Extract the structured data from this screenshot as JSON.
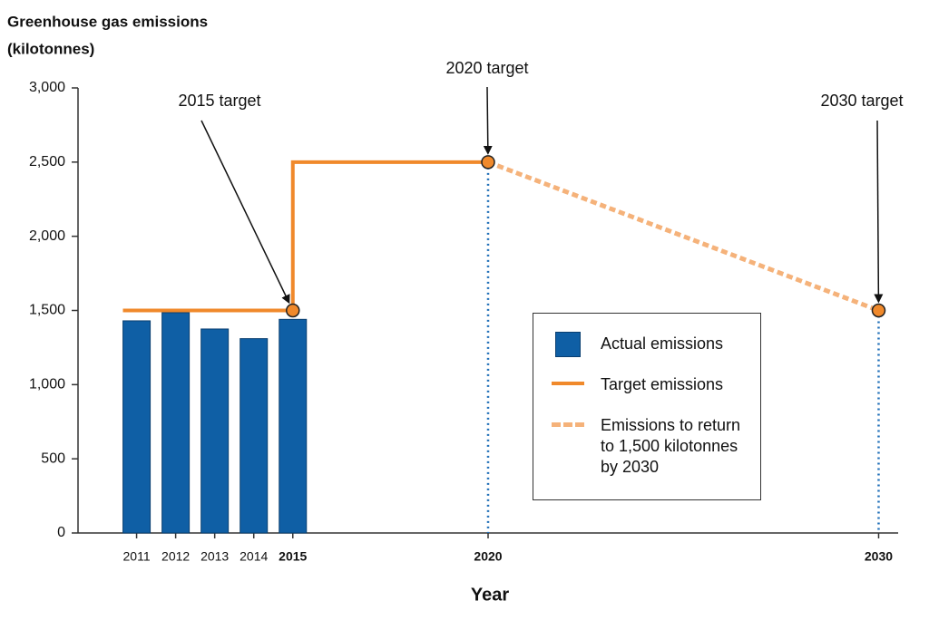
{
  "chart_data": {
    "type": "combo",
    "y_label": [
      "Greenhouse gas emissions",
      "(kilotonnes)"
    ],
    "x_label": "Year",
    "xlim": [
      2009.5,
      2030.5
    ],
    "xticks": [
      2011,
      2012,
      2013,
      2014,
      2015,
      2020,
      2030
    ],
    "ylim": [
      0,
      3000
    ],
    "yticks": [
      0,
      500,
      {
        "value": 1000,
        "label": "1,000"
      },
      {
        "value": 1500,
        "label": "1,500"
      },
      {
        "value": 2000,
        "label": "2,000"
      },
      {
        "value": 2500,
        "label": "2,500"
      },
      {
        "value": 3000,
        "label": "3,000"
      }
    ],
    "series": [
      {
        "name": "Actual emissions",
        "type": "bar",
        "color": "#0f5fa5",
        "x": [
          2011,
          2012,
          2013,
          2014,
          2015
        ],
        "values": [
          1430,
          1485,
          1375,
          1310,
          1440
        ]
      },
      {
        "name": "Target emissions",
        "type": "line",
        "color": "#f0892b",
        "x": [
          2010.65,
          2015,
          2015,
          2020
        ],
        "values": [
          1500,
          1500,
          2500,
          2500
        ]
      },
      {
        "name": "Emissions to return to 1,500 kilotonnes by 2030",
        "type": "line",
        "dashed": true,
        "color": "#f5b27a",
        "x": [
          2020,
          2030
        ],
        "values": [
          2500,
          1500
        ]
      }
    ],
    "annotations": [
      {
        "text": "2015 target",
        "x": 2015,
        "y": 1500,
        "guide": false
      },
      {
        "text": "2020 target",
        "x": 2020,
        "y": 2500,
        "guide": true
      },
      {
        "text": "2030 target",
        "x": 2030,
        "y": 1500,
        "guide": true
      }
    ],
    "guide_color": "#1f6fb8"
  }
}
